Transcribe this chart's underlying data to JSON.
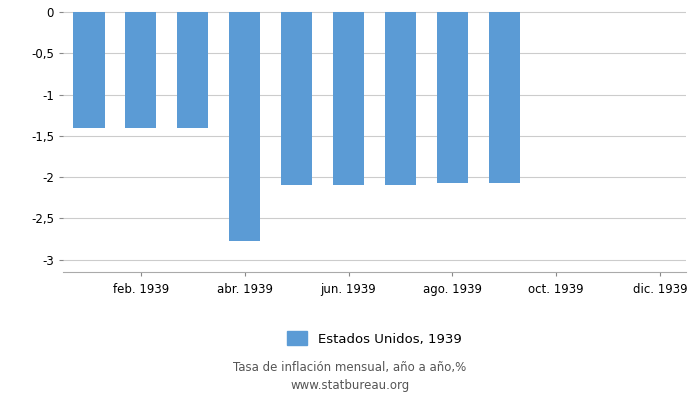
{
  "months": [
    1,
    2,
    3,
    4,
    5,
    6,
    7,
    8,
    9,
    10,
    11,
    12
  ],
  "values": [
    -1.4,
    -1.4,
    -1.4,
    -2.78,
    -2.1,
    -2.1,
    -2.1,
    -2.07,
    -2.07,
    0,
    0,
    0
  ],
  "bar_color": "#5b9bd5",
  "xlim_left": 0.5,
  "xlim_right": 12.5,
  "ylim_bottom": -3.15,
  "ylim_top": 0.05,
  "yticks": [
    0,
    -0.5,
    -1.0,
    -1.5,
    -2.0,
    -2.5,
    -3.0
  ],
  "ytick_labels": [
    "0",
    "-0,5",
    "-1",
    "-1,5",
    "-2",
    "-2,5",
    "-3"
  ],
  "xtick_positions": [
    2,
    4,
    6,
    8,
    10,
    12
  ],
  "xtick_labels": [
    "feb. 1939",
    "abr. 1939",
    "jun. 1939",
    "ago. 1939",
    "oct. 1939",
    "dic. 1939"
  ],
  "legend_label": "Estados Unidos, 1939",
  "title_line1": "Tasa de inflación mensual, año a año,%",
  "title_line2": "www.statbureau.org",
  "grid_color": "#cccccc",
  "background_color": "#ffffff"
}
